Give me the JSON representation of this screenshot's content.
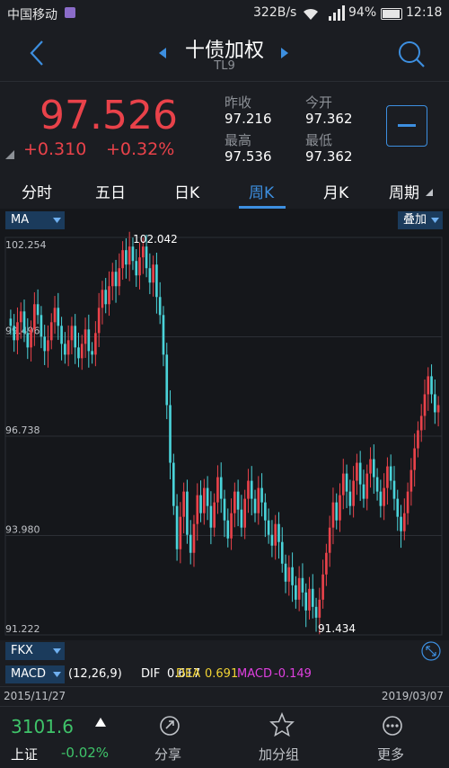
{
  "status": {
    "carrier": "中国移动",
    "speed": "322B/s",
    "battery": "94%",
    "time": "12:18"
  },
  "header": {
    "title": "十债加权",
    "code": "TL9"
  },
  "quote": {
    "price": "97.526",
    "change": "+0.310",
    "change_pct": "+0.32%",
    "labels": {
      "prev_close": "昨收",
      "open": "今开",
      "high": "最高",
      "low": "最低"
    },
    "values": {
      "prev_close": "97.216",
      "open": "97.362",
      "high": "97.536",
      "low": "97.362"
    }
  },
  "tabs": [
    "分时",
    "五日",
    "日K",
    "周K",
    "月K",
    "周期"
  ],
  "active_tab": "周K",
  "chart": {
    "ma_label": "MA",
    "overlay_label": "叠加",
    "fkx_label": "FKX",
    "macd_label": "MACD",
    "macd_params": "(12,26,9)",
    "dif_label": "DIF",
    "dif_value": "0.617",
    "dea_label": "DEA",
    "dea_value": "0.691",
    "macd_name": "MACD",
    "macd_value": "-0.149",
    "start_date": "2015/11/27",
    "end_date": "2019/03/07",
    "high_marker": "102.042",
    "low_marker": "91.434"
  },
  "chart_data": {
    "type": "candlestick",
    "ylim": [
      91.222,
      102.254
    ],
    "y_ticks": [
      "102.254",
      "99.496",
      "96.738",
      "93.980",
      "91.222"
    ],
    "x_range": [
      "2015/11/27",
      "2019/03/07"
    ],
    "close_trace": [
      99.8,
      99.4,
      99.9,
      100.2,
      99.6,
      99.2,
      99.7,
      100.4,
      100.1,
      99.5,
      99.1,
      99.4,
      99.9,
      100.3,
      99.8,
      99.3,
      99.0,
      99.4,
      99.8,
      99.2,
      98.9,
      99.3,
      99.7,
      99.1,
      99.0,
      99.6,
      100.3,
      100.8,
      100.4,
      100.9,
      101.3,
      100.9,
      101.4,
      101.9,
      101.5,
      102.0,
      101.6,
      101.2,
      101.7,
      102.0,
      101.4,
      101.0,
      101.5,
      100.6,
      100.1,
      99.0,
      97.6,
      96.0,
      94.8,
      93.6,
      94.5,
      95.2,
      94.0,
      93.5,
      94.3,
      95.1,
      94.6,
      95.3,
      94.8,
      94.2,
      94.9,
      95.6,
      95.0,
      94.4,
      93.9,
      94.6,
      95.2,
      94.7,
      94.2,
      95.0,
      95.5,
      95.0,
      94.6,
      95.3,
      94.9,
      94.4,
      94.0,
      93.7,
      94.3,
      93.8,
      93.2,
      92.7,
      93.1,
      92.6,
      92.2,
      92.8,
      92.4,
      91.9,
      92.5,
      92.0,
      91.7,
      92.2,
      92.9,
      93.5,
      94.2,
      94.9,
      94.4,
      95.1,
      95.7,
      95.2,
      94.8,
      95.5,
      96.0,
      95.4,
      95.0,
      95.7,
      96.1,
      95.6,
      95.2,
      94.8,
      95.3,
      95.9,
      95.5,
      95.0,
      94.5,
      94.1,
      94.6,
      95.2,
      95.8,
      96.4,
      96.9,
      97.3,
      97.9,
      98.4,
      97.9,
      97.4,
      97.6
    ],
    "dif": 0.617,
    "dea": 0.691,
    "macd": -0.149
  },
  "bottom": {
    "index_value": "3101.6",
    "index_name": "上证",
    "index_change": "-0.02%",
    "share": "分享",
    "add_group": "加分组",
    "more": "更多"
  },
  "colors": {
    "up": "#e9424a",
    "down": "#4ad3d9",
    "accent": "#3d8fe0",
    "bg": "#1b1d22"
  }
}
